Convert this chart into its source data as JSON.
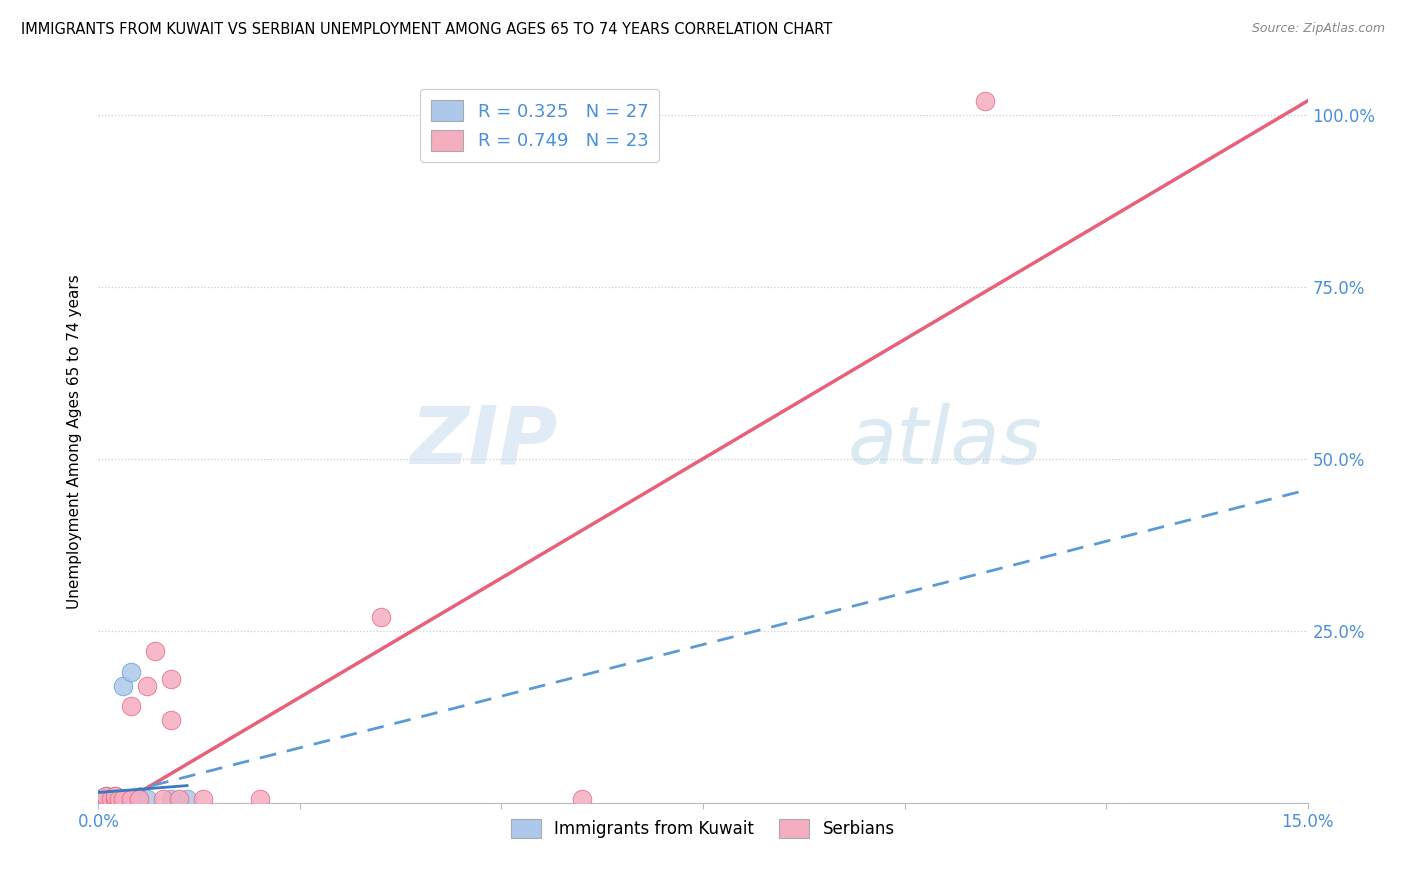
{
  "title": "IMMIGRANTS FROM KUWAIT VS SERBIAN UNEMPLOYMENT AMONG AGES 65 TO 74 YEARS CORRELATION CHART",
  "source": "Source: ZipAtlas.com",
  "ylabel": "Unemployment Among Ages 65 to 74 years",
  "xmin": 0.0,
  "xmax": 0.15,
  "ymin": 0.0,
  "ymax": 1.05,
  "blue_color": "#adc8ea",
  "pink_color": "#f5adc0",
  "blue_line_color": "#5b9bd5",
  "pink_line_color": "#e8607a",
  "blue_solid_line_color": "#3a7abf",
  "legend_bottom_blue": "Immigrants from Kuwait",
  "legend_bottom_pink": "Serbians",
  "watermark_zip": "ZIP",
  "watermark_atlas": "atlas",
  "blue_R": 0.325,
  "blue_N": 27,
  "pink_R": 0.749,
  "pink_N": 23,
  "blue_scatter_x": [
    0.0002,
    0.0003,
    0.0004,
    0.0005,
    0.0006,
    0.0007,
    0.0008,
    0.001,
    0.001,
    0.001,
    0.0012,
    0.0013,
    0.0015,
    0.0016,
    0.0018,
    0.002,
    0.002,
    0.0022,
    0.0025,
    0.003,
    0.003,
    0.004,
    0.004,
    0.005,
    0.006,
    0.009,
    0.011
  ],
  "blue_scatter_y": [
    0.005,
    0.002,
    0.004,
    0.003,
    0.007,
    0.002,
    0.005,
    0.01,
    0.005,
    0.003,
    0.008,
    0.004,
    0.006,
    0.002,
    0.005,
    0.01,
    0.005,
    0.005,
    0.005,
    0.005,
    0.17,
    0.19,
    0.005,
    0.005,
    0.005,
    0.005,
    0.005
  ],
  "pink_scatter_x": [
    0.0003,
    0.0005,
    0.001,
    0.001,
    0.0015,
    0.002,
    0.002,
    0.0025,
    0.003,
    0.004,
    0.004,
    0.005,
    0.006,
    0.007,
    0.008,
    0.009,
    0.009,
    0.01,
    0.013,
    0.02,
    0.035,
    0.06,
    0.11
  ],
  "pink_scatter_y": [
    0.003,
    0.002,
    0.005,
    0.01,
    0.005,
    0.005,
    0.01,
    0.005,
    0.005,
    0.005,
    0.14,
    0.005,
    0.17,
    0.22,
    0.005,
    0.18,
    0.12,
    0.005,
    0.005,
    0.005,
    0.27,
    0.005,
    1.02
  ],
  "pink_line_x0": 0.0,
  "pink_line_y0": -0.02,
  "pink_line_x1": 0.15,
  "pink_line_y1": 1.02,
  "blue_dash_line_x0": 0.0,
  "blue_dash_line_y0": 0.005,
  "blue_dash_line_x1": 0.15,
  "blue_dash_line_y1": 0.455,
  "blue_solid_line_x0": 0.0,
  "blue_solid_line_y0": 0.015,
  "blue_solid_line_x1": 0.011,
  "blue_solid_line_y1": 0.025
}
